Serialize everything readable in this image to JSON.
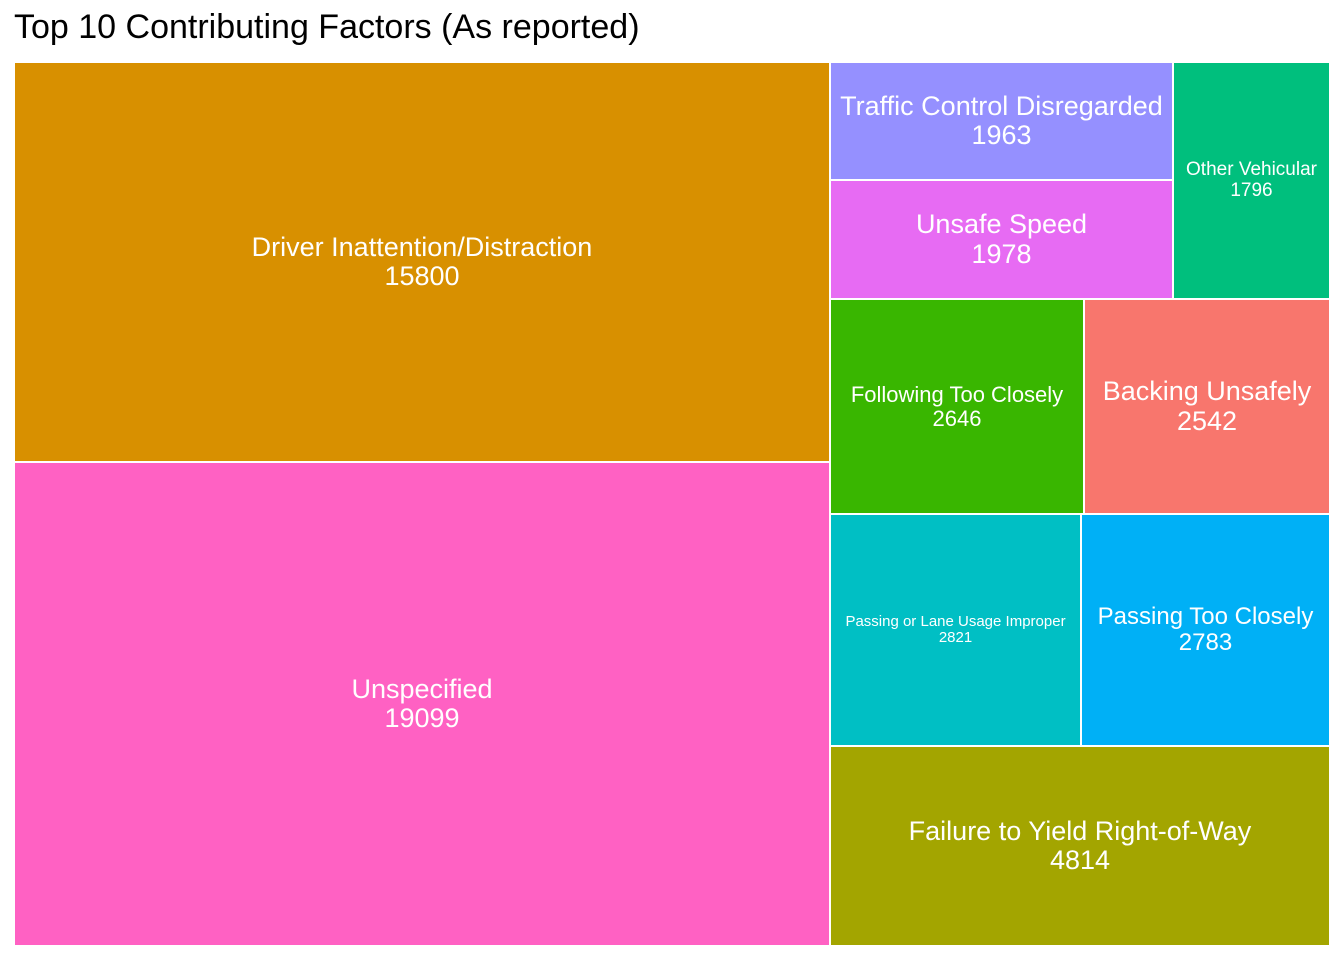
{
  "chart_data": {
    "type": "treemap",
    "title": "Top 10 Contributing Factors (As reported)",
    "items": [
      {
        "label": "Unspecified",
        "value": 19099,
        "color": "#FF61C3"
      },
      {
        "label": "Driver Inattention/Distraction",
        "value": 15800,
        "color": "#D89000"
      },
      {
        "label": "Failure to Yield Right-of-Way",
        "value": 4814,
        "color": "#A3A500"
      },
      {
        "label": "Passing or Lane Usage Improper",
        "value": 2821,
        "color": "#00BFC4"
      },
      {
        "label": "Passing Too Closely",
        "value": 2783,
        "color": "#00B0F6"
      },
      {
        "label": "Following Too Closely",
        "value": 2646,
        "color": "#39B600"
      },
      {
        "label": "Backing Unsafely",
        "value": 2542,
        "color": "#F8766D"
      },
      {
        "label": "Unsafe Speed",
        "value": 1978,
        "color": "#E76BF3"
      },
      {
        "label": "Traffic Control Disregarded",
        "value": 1963,
        "color": "#9590FF"
      },
      {
        "label": "Other Vehicular",
        "value": 1796,
        "color": "#00BF7D"
      }
    ]
  }
}
